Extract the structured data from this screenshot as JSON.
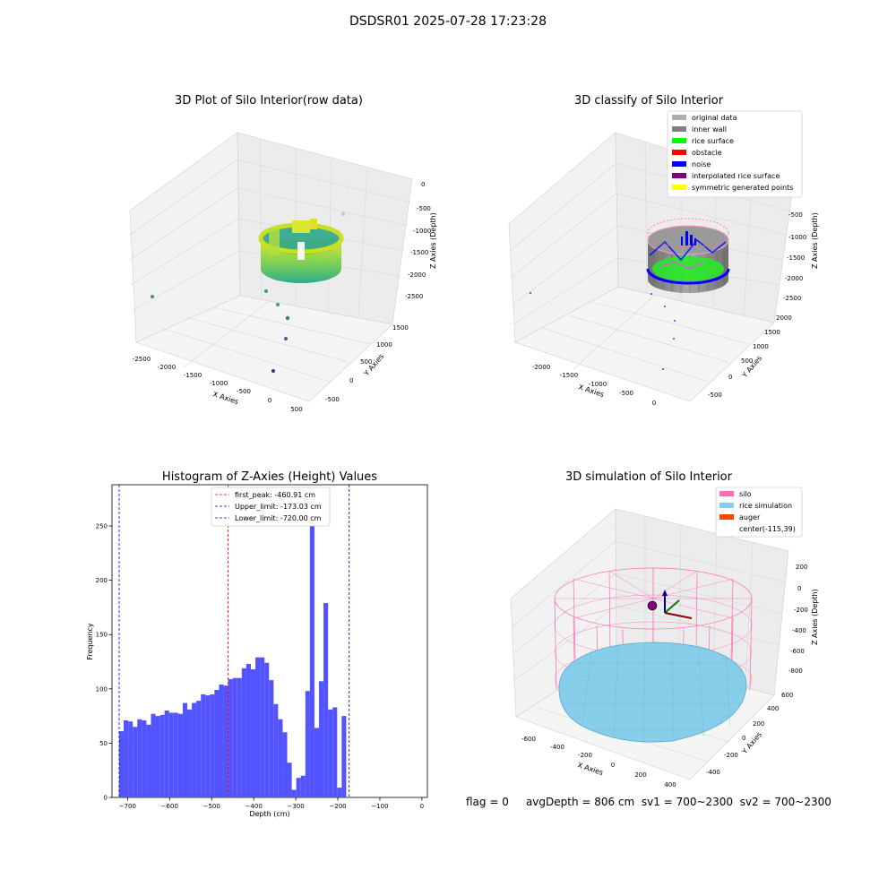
{
  "suptitle": "DSDSR01 2025-07-28 17:23:28",
  "footer": {
    "flag": "flag = 0",
    "avg_depth": "avgDepth = 806 cm",
    "sv1": "sv1 = 700~2300",
    "sv2": "sv2 = 700~2300"
  },
  "colors": {
    "histogram_bar": "#5050ff",
    "first_peak_line": "#ff0000",
    "limit_line": "#0000cc",
    "inner_wall": "#808080",
    "rice_surface": "#00ff00",
    "obstacle": "#ff0000",
    "noise": "#0000ff",
    "interpolated": "#800080",
    "symmetric": "#ffff00",
    "original": "#b0b0b0",
    "silo": "#ff69b4",
    "rice_sim": "#87ceeb",
    "auger": "#ff4500"
  },
  "chart_data": [
    {
      "type": "scatter",
      "title": "3D Plot of Silo Interior(row data)",
      "xlabel": "X Axies",
      "ylabel": "Y Axies",
      "zlabel": "Z Axies (Depth)",
      "x_ticks": [
        "-2500",
        "-2000",
        "-1500",
        "-1000",
        "-500",
        "0",
        "500"
      ],
      "y_ticks": [
        "-500",
        "0",
        "500",
        "1000",
        "1500"
      ],
      "z_ticks": [
        "0",
        "-500",
        "-1000",
        "-1500",
        "-2000",
        "-2500"
      ],
      "grid": true
    },
    {
      "type": "scatter",
      "title": "3D classify of Silo Interior",
      "xlabel": "X Axies",
      "ylabel": "Y Axies",
      "zlabel": "Z Axies (Depth)",
      "x_ticks": [
        "-2000",
        "-1500",
        "-1000",
        "-500",
        "0"
      ],
      "y_ticks": [
        "-500",
        "0",
        "500",
        "1000",
        "1500",
        "2000"
      ],
      "z_ticks": [
        "-500",
        "-1000",
        "-1500",
        "-2000",
        "-2500"
      ],
      "legend": [
        "original data",
        "inner wall",
        "rice surface",
        "obstacle",
        "noise",
        "interpolated rice surface",
        "symmetric generated points"
      ],
      "legend_position": "top-right",
      "grid": true
    },
    {
      "type": "bar",
      "title": "Histogram of Z-Axies (Height) Values",
      "xlabel": "Depth (cm)",
      "ylabel": "Frequency",
      "xlim": [
        -737,
        13
      ],
      "ylim": [
        0,
        288
      ],
      "x_ticks": [
        -700,
        -600,
        -500,
        -400,
        -300,
        -200,
        -100,
        0
      ],
      "y_ticks": [
        0,
        50,
        100,
        150,
        200,
        250
      ],
      "bin_start": -720,
      "bin_width": 10.8,
      "values": [
        61,
        71,
        70,
        65,
        72,
        71,
        67,
        77,
        75,
        76,
        80,
        78,
        78,
        77,
        87,
        81,
        87,
        89,
        95,
        94,
        95,
        99,
        104,
        103,
        109,
        110,
        110,
        119,
        123,
        118,
        129,
        129,
        124,
        108,
        86,
        72,
        60,
        32,
        7,
        18,
        20,
        98,
        274,
        64,
        107,
        179,
        81,
        83,
        9,
        75
      ],
      "vlines": [
        {
          "label": "first_peak: -460.91 cm",
          "x": -460.91,
          "color": "red"
        },
        {
          "label": "Upper_limit: -173.03 cm",
          "x": -173.03,
          "color": "blue"
        },
        {
          "label": "Lower_limit: -720.00 cm",
          "x": -720.0,
          "color": "blue"
        }
      ],
      "legend_position": "top-center"
    },
    {
      "type": "scatter",
      "title": "3D simulation of Silo Interior",
      "xlabel": "X Axies",
      "ylabel": "Y Axies",
      "zlabel": "Z Axies (Depth)",
      "x_ticks": [
        "-600",
        "-400",
        "-200",
        "0",
        "200",
        "400"
      ],
      "y_ticks": [
        "-400",
        "-200",
        "0",
        "200",
        "400",
        "600"
      ],
      "z_ticks": [
        "200",
        "0",
        "-200",
        "-400",
        "-600",
        "-800"
      ],
      "legend": [
        "silo",
        "rice simulation",
        "auger",
        "center(-115,39)"
      ],
      "legend_position": "top-right",
      "grid": true
    }
  ]
}
